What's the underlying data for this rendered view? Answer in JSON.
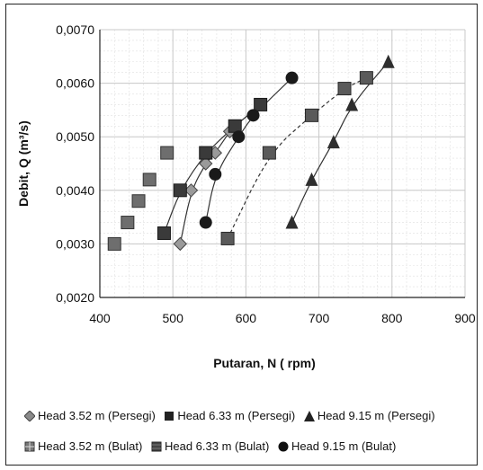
{
  "chart_data": {
    "type": "scatter",
    "xlabel": "Putaran, N ( rpm)",
    "ylabel": "Debit, Q (m³/s)",
    "xlim": [
      400,
      900
    ],
    "ylim": [
      0.002,
      0.007
    ],
    "xticks": [
      "400",
      "500",
      "600",
      "700",
      "800",
      "900"
    ],
    "yticks": [
      "0,0020",
      "0,0030",
      "0,0040",
      "0,0050",
      "0,0060",
      "0,0070"
    ],
    "grid": true,
    "legend_position": "bottom",
    "series": [
      {
        "name": "Head 3.52 m (Persegi)",
        "marker": "diamond",
        "trendline": true,
        "x": [
          510,
          525,
          545,
          558,
          578
        ],
        "y": [
          0.003,
          0.004,
          0.0045,
          0.0047,
          0.0051
        ]
      },
      {
        "name": "Head 6.33 m (Persegi)",
        "marker": "square",
        "trendline": true,
        "x": [
          575,
          632,
          690,
          735,
          765
        ],
        "y": [
          0.0031,
          0.0047,
          0.0054,
          0.0059,
          0.0061
        ]
      },
      {
        "name": "Head 9.15 m (Persegi)",
        "marker": "triangle",
        "trendline": true,
        "x": [
          663,
          690,
          720,
          745,
          795
        ],
        "y": [
          0.0034,
          0.0042,
          0.0049,
          0.0056,
          0.0064
        ]
      },
      {
        "name": "Head 3.52 m (Bulat)",
        "marker": "square-hatched",
        "trendline": false,
        "x": [
          420,
          438,
          453,
          468,
          492
        ],
        "y": [
          0.003,
          0.0034,
          0.0038,
          0.0042,
          0.0047
        ]
      },
      {
        "name": "Head 6.33 m (Bulat)",
        "marker": "square-dark",
        "trendline": true,
        "x": [
          488,
          510,
          545,
          585,
          620
        ],
        "y": [
          0.0032,
          0.004,
          0.0047,
          0.0052,
          0.0056
        ]
      },
      {
        "name": "Head 9.15 m (Bulat)",
        "marker": "circle",
        "trendline": true,
        "x": [
          545,
          558,
          590,
          610,
          663
        ],
        "y": [
          0.0034,
          0.0043,
          0.005,
          0.0054,
          0.0061
        ]
      }
    ],
    "colors": {
      "marker": "#6e6e6e",
      "marker_dark": "#3a3a3a",
      "circle": "#1a1a1a",
      "grid": "#c8c8c8",
      "line": "#333333"
    }
  }
}
